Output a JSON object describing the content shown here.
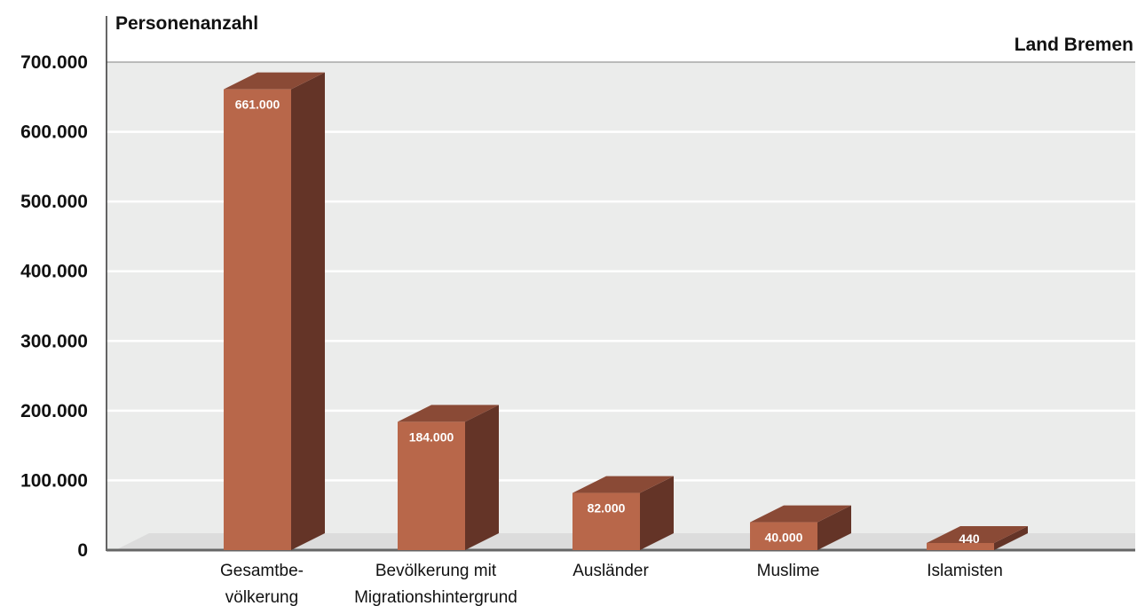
{
  "chart_data": {
    "type": "bar",
    "title": "Land Bremen",
    "ylabel": "Personenanzahl",
    "xlabel": "",
    "ylim": [
      0,
      700000
    ],
    "y_ticks": [
      0,
      100000,
      200000,
      300000,
      400000,
      500000,
      600000,
      700000
    ],
    "y_tick_labels": [
      "0",
      "100.000",
      "200.000",
      "300.000",
      "400.000",
      "500.000",
      "600.000",
      "700.000"
    ],
    "categories": [
      [
        "Gesamtbe-",
        "völkerung"
      ],
      [
        "Bevölkerung mit",
        "Migrationshintergrund"
      ],
      [
        "Ausländer"
      ],
      [
        "Muslime"
      ],
      [
        "Islamisten"
      ]
    ],
    "values": [
      661000,
      184000,
      82000,
      40000,
      440
    ],
    "value_labels": [
      "661.000",
      "184.000",
      "82.000",
      "40.000",
      "440"
    ],
    "grid": true,
    "style": "3d-bar",
    "colors": {
      "bar_front": "#b8674a",
      "bar_side": "#643427",
      "bar_top": "#8a4a36",
      "plot_background": "#ebeceb",
      "floor": "#dcdcdc",
      "gridline": "#ffffff",
      "axis": "#666666"
    }
  }
}
